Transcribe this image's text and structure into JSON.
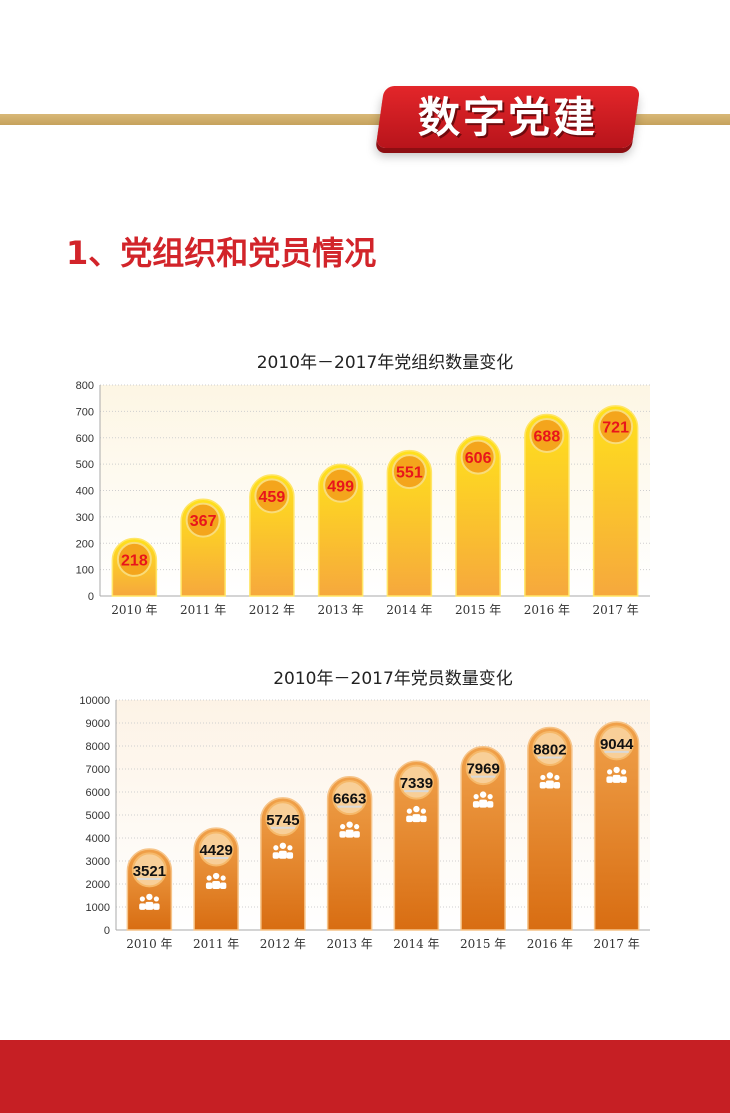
{
  "header": {
    "banner_title": "数字党建",
    "section_title": "1、党组织和党员情况"
  },
  "colors": {
    "brand_red": "#c61f24",
    "gold": "#c9a660",
    "yellow_bar": "#ffd21a",
    "orange_bar": "#e07a13",
    "value_red": "#e8151b"
  },
  "chart_data": [
    {
      "type": "bar",
      "title": "2010年－2017年党组织数量变化",
      "categories": [
        "2010 年",
        "2011 年",
        "2012 年",
        "2013 年",
        "2014 年",
        "2015 年",
        "2016 年",
        "2017 年"
      ],
      "values": [
        218,
        367,
        459,
        499,
        551,
        606,
        688,
        721
      ],
      "data_labels": [
        "218",
        "367",
        "459",
        "499",
        "551",
        "606",
        "688",
        "721"
      ],
      "yticks": [
        "0",
        "100",
        "200",
        "300",
        "400",
        "500",
        "600",
        "700",
        "800"
      ],
      "ylim": [
        0,
        800
      ],
      "grid": true
    },
    {
      "type": "bar",
      "title": "2010年－2017年党员数量变化",
      "categories": [
        "2010 年",
        "2011 年",
        "2012 年",
        "2013 年",
        "2014 年",
        "2015 年",
        "2016 年",
        "2017 年"
      ],
      "values": [
        3521,
        4429,
        5745,
        6663,
        7339,
        7969,
        8802,
        9044
      ],
      "data_labels": [
        "3521",
        "4429",
        "5745",
        "6663",
        "7339",
        "7969",
        "8802",
        "9044"
      ],
      "yticks": [
        "0",
        "1000",
        "2000",
        "3000",
        "4000",
        "5000",
        "6000",
        "7000",
        "8000",
        "9000",
        "10000"
      ],
      "ylim": [
        0,
        10000
      ],
      "grid": true,
      "marker_icon": "people-icon"
    }
  ]
}
